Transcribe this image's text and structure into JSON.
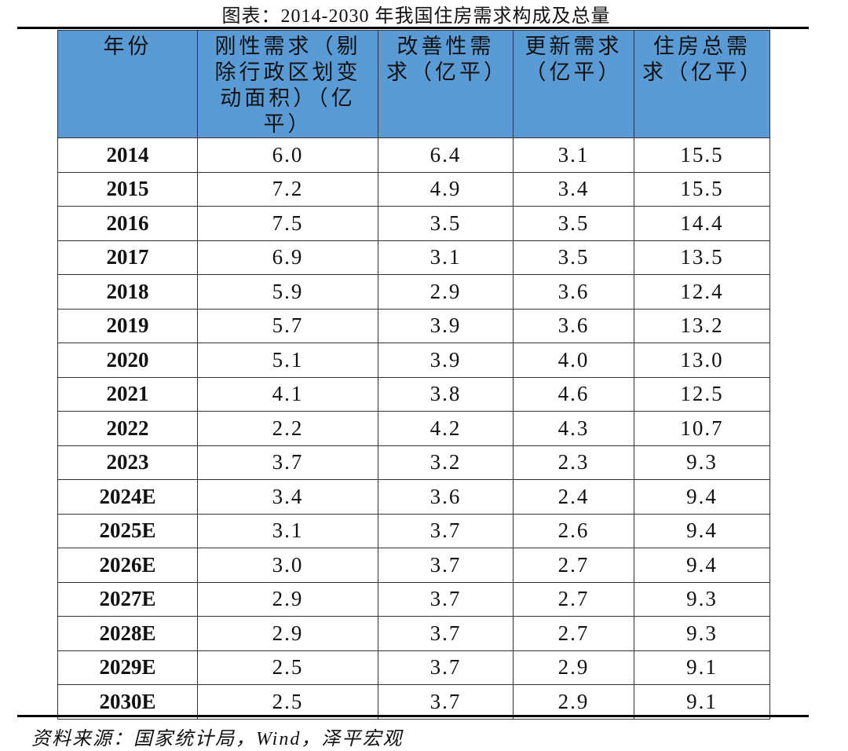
{
  "title": "图表：2014-2030 年我国住房需求构成及总量",
  "table": {
    "header": [
      "年份",
      "刚性需求（剔除行政区划变动面积）（亿平）",
      "改善性需求（亿平）",
      "更新需求（亿平）",
      "住房总需求（亿平）"
    ],
    "rows": [
      [
        "2014",
        "6.0",
        "6.4",
        "3.1",
        "15.5"
      ],
      [
        "2015",
        "7.2",
        "4.9",
        "3.4",
        "15.5"
      ],
      [
        "2016",
        "7.5",
        "3.5",
        "3.5",
        "14.4"
      ],
      [
        "2017",
        "6.9",
        "3.1",
        "3.5",
        "13.5"
      ],
      [
        "2018",
        "5.9",
        "2.9",
        "3.6",
        "12.4"
      ],
      [
        "2019",
        "5.7",
        "3.9",
        "3.6",
        "13.2"
      ],
      [
        "2020",
        "5.1",
        "3.9",
        "4.0",
        "13.0"
      ],
      [
        "2021",
        "4.1",
        "3.8",
        "4.6",
        "12.5"
      ],
      [
        "2022",
        "2.2",
        "4.2",
        "4.3",
        "10.7"
      ],
      [
        "2023",
        "3.7",
        "3.2",
        "2.3",
        "9.3"
      ],
      [
        "2024E",
        "3.4",
        "3.6",
        "2.4",
        "9.4"
      ],
      [
        "2025E",
        "3.1",
        "3.7",
        "2.6",
        "9.4"
      ],
      [
        "2026E",
        "3.0",
        "3.7",
        "2.7",
        "9.4"
      ],
      [
        "2027E",
        "2.9",
        "3.7",
        "2.7",
        "9.3"
      ],
      [
        "2028E",
        "2.9",
        "3.7",
        "2.7",
        "9.3"
      ],
      [
        "2029E",
        "2.5",
        "3.7",
        "2.9",
        "9.1"
      ],
      [
        "2030E",
        "2.5",
        "3.7",
        "2.9",
        "9.1"
      ]
    ]
  },
  "source": "资料来源：国家统计局，Wind，泽平宏观"
}
